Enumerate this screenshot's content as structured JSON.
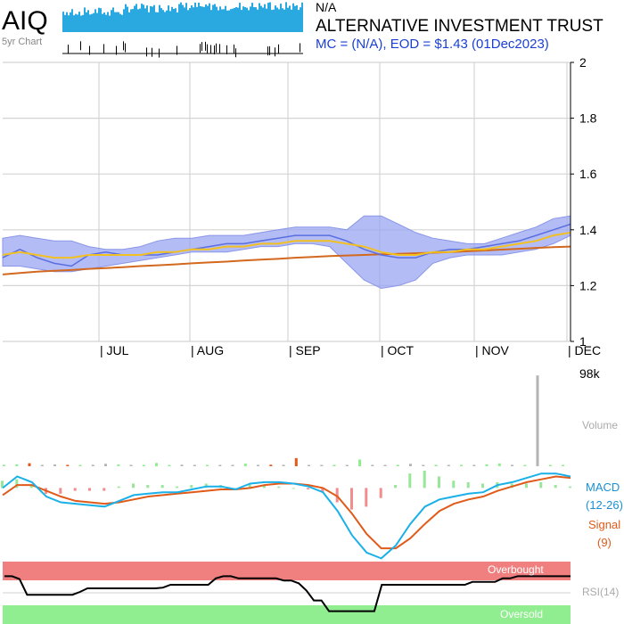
{
  "header": {
    "ticker": "AIQ",
    "thumb_label": "5yr Chart",
    "status": "N/A",
    "company": "ALTERNATIVE INVESTMENT TRUST",
    "mc_eod": "MC = (N/A), EOD = $1.43 (01Dec2023)"
  },
  "colors": {
    "price_band": "#9aa6f2",
    "ma_short": "#f2c020",
    "ma_long": "#d2691e",
    "macd": "#1ab0e8",
    "signal": "#e05a1a",
    "overbought": "#f08080",
    "oversold": "#90ee90",
    "volume_up": "#90ee90",
    "volume_down": "#e05a1a",
    "volume_neutral": "#b4b4b4",
    "thumb": "#2aa8e0"
  },
  "chart_data": [
    {
      "type": "line",
      "title": "Price",
      "months": [
        "| JUL",
        "| AUG",
        "| SEP",
        "| OCT",
        "| NOV",
        "| DEC"
      ],
      "y_ticks": [
        "2",
        "1.8",
        "1.6",
        "1.4",
        "1.2",
        "1"
      ],
      "ylim": [
        1,
        2
      ],
      "grid": true,
      "series": [
        {
          "key": "price",
          "values": [
            1.3,
            1.33,
            1.3,
            1.28,
            1.27,
            1.31,
            1.32,
            1.31,
            1.31,
            1.31,
            1.32,
            1.33,
            1.34,
            1.35,
            1.35,
            1.36,
            1.37,
            1.38,
            1.38,
            1.38,
            1.36,
            1.33,
            1.31,
            1.3,
            1.3,
            1.32,
            1.33,
            1.33,
            1.34,
            1.35,
            1.36,
            1.38,
            1.4,
            1.42
          ]
        },
        {
          "key": "ma_short",
          "values": [
            1.31,
            1.32,
            1.31,
            1.3,
            1.3,
            1.31,
            1.31,
            1.31,
            1.31,
            1.32,
            1.32,
            1.33,
            1.33,
            1.34,
            1.34,
            1.35,
            1.35,
            1.36,
            1.36,
            1.36,
            1.35,
            1.34,
            1.32,
            1.31,
            1.31,
            1.32,
            1.32,
            1.33,
            1.33,
            1.34,
            1.35,
            1.36,
            1.38,
            1.39
          ]
        },
        {
          "key": "ma_long",
          "values": [
            1.24,
            1.245,
            1.25,
            1.253,
            1.256,
            1.26,
            1.263,
            1.266,
            1.27,
            1.273,
            1.276,
            1.28,
            1.283,
            1.286,
            1.29,
            1.293,
            1.296,
            1.3,
            1.303,
            1.306,
            1.308,
            1.31,
            1.312,
            1.314,
            1.316,
            1.318,
            1.32,
            1.323,
            1.326,
            1.329,
            1.332,
            1.335,
            1.338,
            1.34
          ]
        },
        {
          "key": "band_upper",
          "values": [
            1.37,
            1.38,
            1.37,
            1.36,
            1.36,
            1.34,
            1.33,
            1.33,
            1.34,
            1.36,
            1.37,
            1.37,
            1.38,
            1.38,
            1.38,
            1.39,
            1.4,
            1.41,
            1.41,
            1.41,
            1.4,
            1.45,
            1.45,
            1.42,
            1.39,
            1.37,
            1.36,
            1.35,
            1.35,
            1.37,
            1.39,
            1.41,
            1.44,
            1.45
          ]
        },
        {
          "key": "band_lower",
          "values": [
            1.27,
            1.27,
            1.26,
            1.25,
            1.25,
            1.26,
            1.27,
            1.28,
            1.29,
            1.3,
            1.31,
            1.32,
            1.32,
            1.32,
            1.33,
            1.34,
            1.34,
            1.35,
            1.35,
            1.34,
            1.28,
            1.22,
            1.19,
            1.2,
            1.22,
            1.28,
            1.3,
            1.31,
            1.31,
            1.31,
            1.32,
            1.33,
            1.35,
            1.38
          ]
        }
      ]
    },
    {
      "type": "bar",
      "title": "Volume",
      "label": "Volume",
      "max_label": "98k",
      "ylim": [
        0,
        98000
      ],
      "values": [
        1500,
        2000,
        3200,
        400,
        1800,
        300,
        1200,
        1500,
        2500,
        1800,
        400,
        1500,
        3500,
        700,
        1600,
        400,
        800,
        1200,
        1100,
        2800,
        1200,
        1600,
        1500,
        8500,
        1300,
        800,
        1500,
        900,
        7000,
        1200,
        1000,
        1500,
        2500,
        800,
        1500,
        900,
        1200,
        900,
        2000,
        3000,
        1100,
        900,
        95000,
        800,
        1200
      ],
      "colors": [
        "up",
        "up",
        "down",
        "neutral",
        "neutral",
        "down",
        "up",
        "neutral",
        "neutral",
        "up",
        "neutral",
        "up",
        "up",
        "up",
        "neutral",
        "neutral",
        "up",
        "neutral",
        "neutral",
        "up",
        "neutral",
        "down",
        "neutral",
        "down",
        "neutral",
        "neutral",
        "up",
        "neutral",
        "up",
        "neutral",
        "neutral",
        "up",
        "neutral",
        "neutral",
        "up",
        "neutral",
        "up",
        "neutral",
        "up",
        "up",
        "neutral",
        "up",
        "neutral",
        "up",
        "up"
      ]
    },
    {
      "type": "line",
      "title": "MACD",
      "macd_label": "MACD",
      "macd_params": "(12-26)",
      "signal_label": "Signal",
      "signal_params": "(9)",
      "ylim": [
        -0.05,
        0.012
      ],
      "macd": [
        0.0,
        0.008,
        0.004,
        -0.006,
        -0.01,
        -0.011,
        -0.012,
        -0.013,
        -0.009,
        -0.005,
        -0.004,
        -0.003,
        -0.003,
        -0.001,
        0.001,
        0.001,
        -0.001,
        0.003,
        0.004,
        0.004,
        0.003,
        0.001,
        -0.003,
        -0.016,
        -0.033,
        -0.045,
        -0.049,
        -0.04,
        -0.025,
        -0.013,
        -0.008,
        -0.006,
        -0.004,
        -0.003,
        0.002,
        0.004,
        0.007,
        0.01,
        0.01,
        0.008
      ],
      "signal": [
        -0.005,
        0.002,
        0.002,
        -0.002,
        -0.006,
        -0.009,
        -0.01,
        -0.011,
        -0.01,
        -0.008,
        -0.006,
        -0.005,
        -0.004,
        -0.003,
        -0.002,
        -0.001,
        -0.001,
        0.0,
        0.002,
        0.003,
        0.003,
        0.002,
        0.0,
        -0.006,
        -0.018,
        -0.032,
        -0.042,
        -0.042,
        -0.035,
        -0.025,
        -0.016,
        -0.011,
        -0.008,
        -0.006,
        -0.002,
        0.001,
        0.004,
        0.006,
        0.008,
        0.007
      ],
      "histogram": [
        0.005,
        0.006,
        0.002,
        -0.004,
        -0.004,
        -0.002,
        -0.002,
        -0.002,
        0.001,
        0.003,
        0.002,
        0.002,
        0.001,
        0.002,
        0.003,
        0.002,
        0.0,
        0.003,
        0.002,
        0.001,
        0.0,
        -0.001,
        -0.003,
        -0.01,
        -0.015,
        -0.013,
        -0.007,
        0.002,
        0.01,
        0.012,
        0.008,
        0.005,
        0.004,
        0.003,
        0.004,
        0.003,
        0.003,
        0.004,
        0.002,
        0.001
      ]
    },
    {
      "type": "line",
      "title": "RSI",
      "rsi_label": "RSI(14)",
      "overbought_label": "Overbought",
      "oversold_label": "Oversold",
      "ylim": [
        0,
        100
      ],
      "overbought": 70,
      "oversold": 30,
      "values": [
        67,
        67,
        63,
        41,
        41,
        41,
        41,
        41,
        41,
        41,
        45,
        50,
        50,
        50,
        50,
        50,
        50,
        50,
        50,
        50,
        50,
        51,
        55,
        55,
        55,
        55,
        55,
        55,
        64,
        67,
        67,
        64,
        64,
        64,
        64,
        64,
        64,
        61,
        61,
        57,
        47,
        33,
        33,
        18,
        18,
        18,
        18,
        18,
        18,
        18,
        55,
        55,
        55,
        55,
        55,
        55,
        55,
        55,
        55,
        55,
        55,
        55,
        59,
        59,
        59,
        59,
        64,
        64,
        67,
        67,
        67,
        67,
        67,
        67,
        67,
        67
      ]
    }
  ]
}
